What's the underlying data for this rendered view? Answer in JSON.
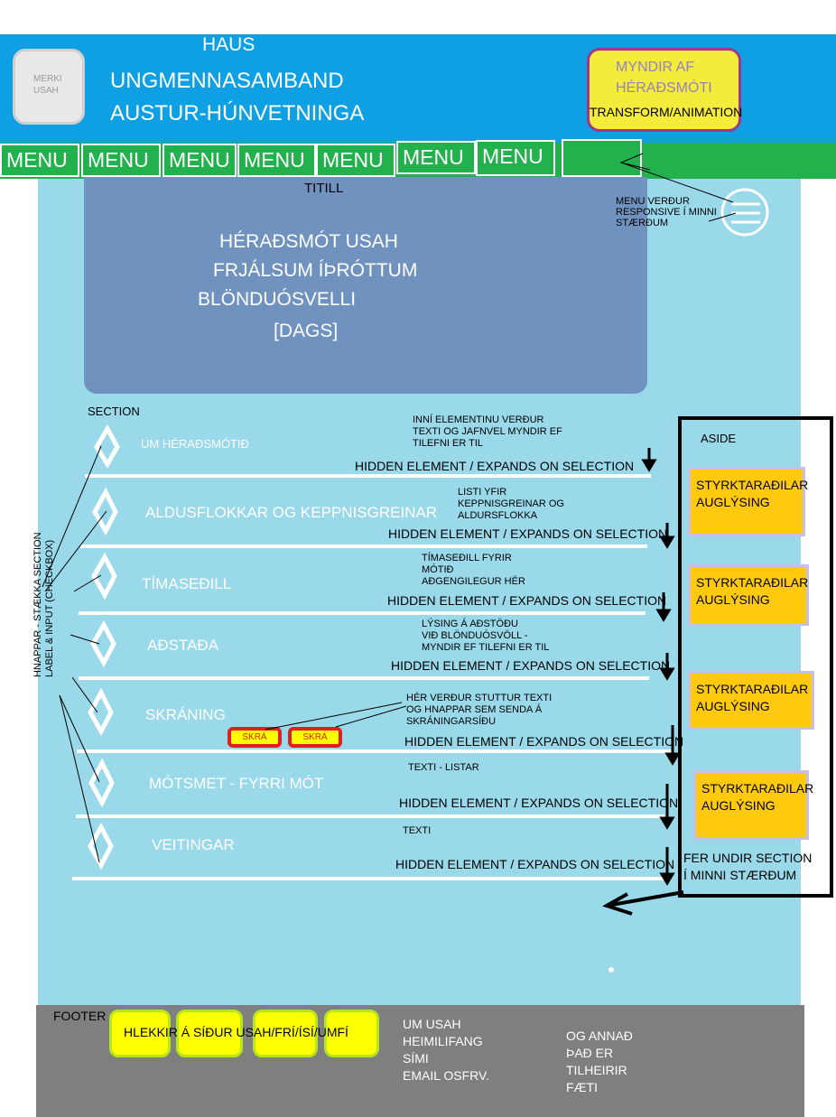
{
  "header": {
    "haus": "HAUS",
    "logo": [
      "MERKI",
      "USAH"
    ],
    "org_line1": "UNGMENNASAMBAND",
    "org_line2": "AUSTUR-HÚNVETNINGA",
    "myndir": [
      "MYNDIR AF",
      "HÉRAÐSMÓTI",
      "TRANSFORM/ANIMATION"
    ]
  },
  "nav": {
    "items": [
      "MENU",
      "MENU",
      "MENU",
      "MENU",
      "MENU",
      "MENU",
      "MENU",
      ""
    ],
    "responsive_note": [
      "MENU VERÐUR",
      "RESPONSIVE Í MINNI",
      "STÆRÐUM"
    ]
  },
  "hero": {
    "titill": "TITILL",
    "lines": [
      "HÉRAÐSMÓT USAH",
      "FRJÁLSUM ÍÞRÓTTUM",
      "BLÖNDUÓSVELLI",
      "[DAGS]"
    ]
  },
  "section": {
    "label": "SECTION",
    "side_note": [
      "HNAPPAR - STÆKKA SECTION",
      "LABEL & INPUT (CHECKBOX)"
    ],
    "hidden_text": "HIDDEN ELEMENT / EXPANDS ON SELECTION",
    "items": [
      {
        "title": "UM HÉRAÐSMÓTIÐ",
        "note": [
          "INNÍ ELEMENTINU VERÐUR",
          "TEXTI OG JAFNVEL MYNDIR EF",
          "TILEFNI ER TIL"
        ]
      },
      {
        "title": "ALDUSFLOKKAR OG KEPPNISGREINAR",
        "note": [
          "LISTI YFIR",
          "KEPPNISGREINAR OG",
          "ALDURSFLOKKA"
        ]
      },
      {
        "title": "TÍMASEÐILL",
        "note": [
          "TÍMASEÐILL FYRIR",
          "MÓTIÐ",
          "AÐGENGILEGUR HÉR"
        ]
      },
      {
        "title": "AÐSTAÐA",
        "note": [
          "LÝSING Á AÐSTÖÐU",
          "VIÐ BLÖNDUÓSVÖLL -",
          "MYNDIR EF TILEFNI ER TIL"
        ]
      },
      {
        "title": "SKRÁNING",
        "note": [
          "HÉR VERÐUR STUTTUR TEXTI",
          "OG HNAPPAR SEM SENDA Á",
          "SKRÁNINGARSÍÐU"
        ]
      },
      {
        "title": "MÓTSMET - FYRRI MÓT",
        "note": [
          "TEXTI - LISTAR"
        ]
      },
      {
        "title": "VEITINGAR",
        "note": [
          "TEXTI"
        ]
      }
    ],
    "skra_buttons": [
      "SKRÁ",
      "SKRÁ"
    ]
  },
  "aside": {
    "label": "ASIDE",
    "ads": [
      [
        "STYRKTARAÐILAR",
        "AUGLÝSING"
      ],
      [
        "STYRKTARAÐILAR",
        "AUGLÝSING"
      ],
      [
        "STYRKTARAÐILAR",
        "AUGLÝSING"
      ],
      [
        "STYRKTARAÐILAR",
        "AUGLÝSING"
      ]
    ],
    "note": [
      "FER UNDIR SECTION",
      "Í MINNI STÆRÐUM"
    ]
  },
  "footer": {
    "label": "FOOTER",
    "links_text": "HLEKKIR Á SÍÐUR USAH/FRÍ/ÍSÍ/UMFÍ",
    "col1": [
      "UM USAH",
      "HEIMILIFANG",
      "SÍMI",
      "EMAIL OSFRV."
    ],
    "col2": [
      "OG ANNAÐ",
      "ÞAÐ ER",
      "TILHEIRIR",
      "FÆTI"
    ]
  },
  "colors": {
    "header": "#0ea0e3",
    "nav": "#22b14c",
    "main": "#99d9ea",
    "hero": "#7092be",
    "ad": "#ffc90e",
    "footer": "#7f7f7f"
  }
}
